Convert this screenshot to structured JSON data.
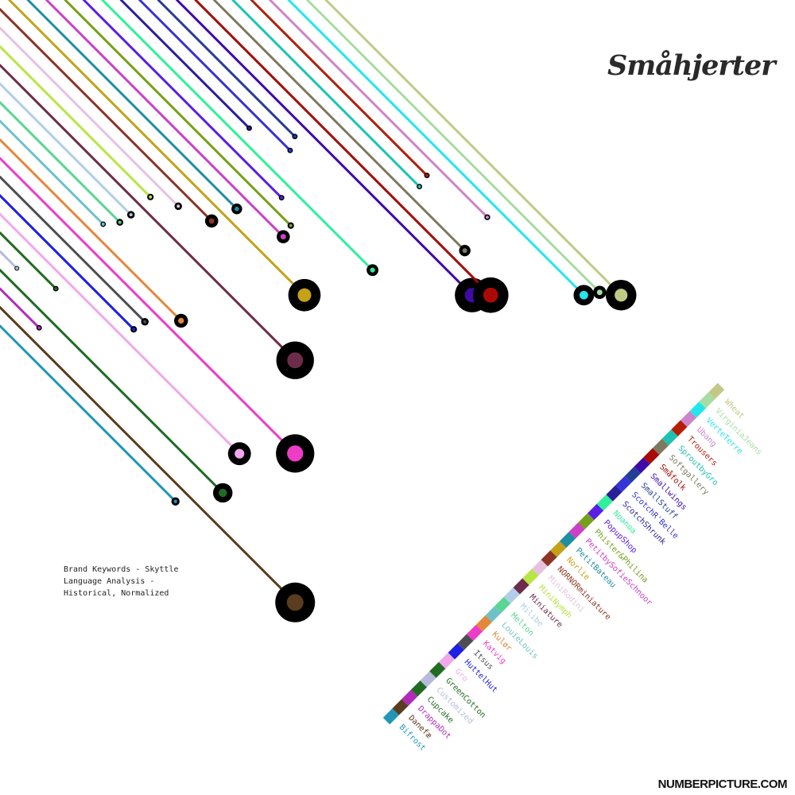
{
  "title": "Småhjerter",
  "subtitle": "Brand Keywords - Skyttle Language Analysis - Historical, Normalized",
  "footer": "NUMBERPICTURE.COM",
  "chart_data": {
    "type": "scatter",
    "series": [
      {
        "name": "Bifrost",
        "color": "#2196b6",
        "position": 0.57,
        "size": 0.1
      },
      {
        "name": "Danefæ",
        "color": "#5a3d1e",
        "position": 1.0,
        "size": 1.0
      },
      {
        "name": "DrappaDot",
        "color": "#b02cb8",
        "position": 0.08,
        "size": 0.02
      },
      {
        "name": "Cupcake",
        "color": "#1f6b24",
        "position": 0.74,
        "size": 0.42
      },
      {
        "name": "Customized",
        "color": "#b7b9dd",
        "position": 0.0,
        "size": 0.0
      },
      {
        "name": "GreenCotton",
        "color": "#236b22",
        "position": 0.14,
        "size": 0.02
      },
      {
        "name": "Gro",
        "color": "#f0a8ec",
        "position": 0.8,
        "size": 0.52
      },
      {
        "name": "HuttelHut",
        "color": "#1d1ee6",
        "position": 0.42,
        "size": 0.05
      },
      {
        "name": "Itsus",
        "color": "#4d4d55",
        "position": 0.46,
        "size": 0.08
      },
      {
        "name": "Katvig",
        "color": "#ee3cc7",
        "position": 1.0,
        "size": 0.96
      },
      {
        "name": "Kulør",
        "color": "#e3883a",
        "position": 0.59,
        "size": 0.26
      },
      {
        "name": "LouieLouis",
        "color": "#6ec1c7",
        "position": 0.31,
        "size": 0.02
      },
      {
        "name": "Melton",
        "color": "#5bd594",
        "position": 0.37,
        "size": 0.06
      },
      {
        "name": "Milibe",
        "color": "#b2cde8",
        "position": 0.41,
        "size": 0.08
      },
      {
        "name": "Miniature",
        "color": "#6d2d4a",
        "position": 1.0,
        "size": 0.94
      },
      {
        "name": "MiniNymph",
        "color": "#b7e642",
        "position": 0.48,
        "size": 0.05
      },
      {
        "name": "MiniRodini",
        "color": "#e5c3df",
        "position": 0.58,
        "size": 0.08
      },
      {
        "name": "NORNORminiature",
        "color": "#8e3424",
        "position": 0.7,
        "size": 0.24
      },
      {
        "name": "Norlie",
        "color": "#c5a119",
        "position": 1.0,
        "size": 0.79
      },
      {
        "name": "PetitBateau",
        "color": "#1e8ea2",
        "position": 0.69,
        "size": 0.17
      },
      {
        "name": "PetitbySofieSchnoor",
        "color": "#cd40c7",
        "position": 0.79,
        "size": 0.24
      },
      {
        "name": "Phister&Philina",
        "color": "#75a01b",
        "position": 0.75,
        "size": 0.05
      },
      {
        "name": "PopupShop",
        "color": "#5b1ee7",
        "position": 0.65,
        "size": 0.02
      },
      {
        "name": "Noanoa",
        "color": "#2fef9b",
        "position": 0.91,
        "size": 0.2
      },
      {
        "name": "ScotchShrunk",
        "color": "#2a1f9a",
        "position": 0.4,
        "size": 0.02
      },
      {
        "name": "ScotchR'Belle",
        "color": "#3434d8",
        "position": 0.48,
        "size": 0.02
      },
      {
        "name": "SmallStuff",
        "color": "#233e97",
        "position": 0.43,
        "size": 0.02
      },
      {
        "name": "Smallwings",
        "color": "#3f0aa8",
        "position": 1.0,
        "size": 0.85
      },
      {
        "name": "Småfolk",
        "color": "#a90a05",
        "position": 1.0,
        "size": 0.88
      },
      {
        "name": "Softgallery",
        "color": "#7d7a60",
        "position": 0.84,
        "size": 0.19
      },
      {
        "name": "SproutbyGro",
        "color": "#1ec2b2",
        "position": 0.61,
        "size": 0.02
      },
      {
        "name": "Trousers",
        "color": "#b71d05",
        "position": 0.57,
        "size": 0.02
      },
      {
        "name": "Ubang",
        "color": "#ce84c9",
        "position": 0.72,
        "size": 0.03
      },
      {
        "name": "VerteTerre",
        "color": "#22e6ee",
        "position": 1.0,
        "size": 0.45
      },
      {
        "name": "VirginiaJeans",
        "color": "#a5dda2",
        "position": 0.99,
        "size": 0.24
      },
      {
        "name": "Wheat",
        "color": "#c2c986",
        "position": 1.0,
        "size": 0.74
      }
    ]
  }
}
